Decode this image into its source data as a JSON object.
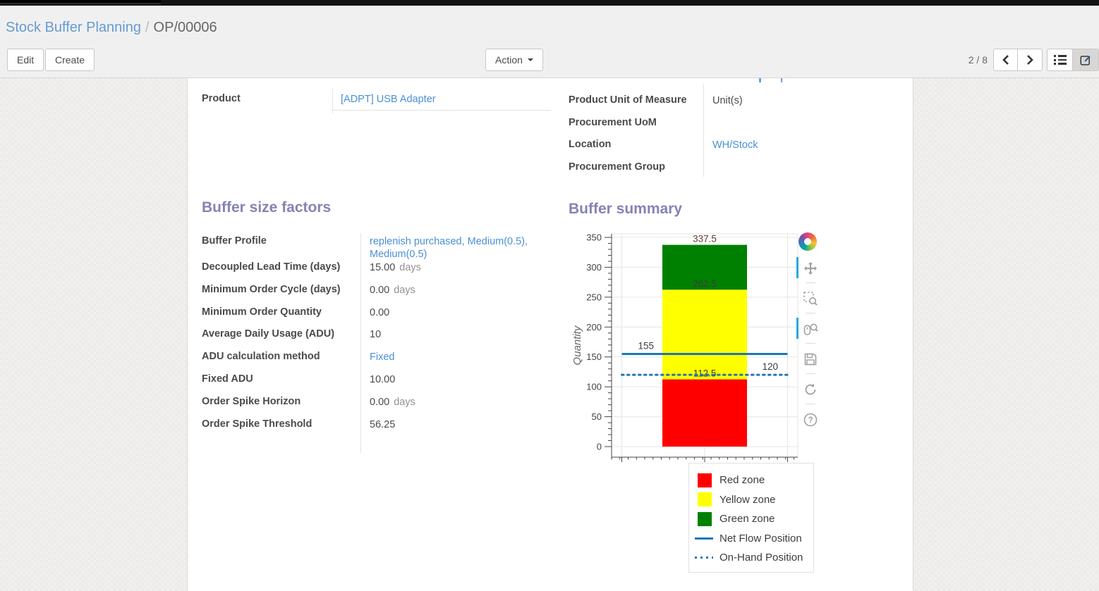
{
  "breadcrumb": {
    "parent": "Stock Buffer Planning",
    "separator": "/",
    "current": "OP/00006"
  },
  "control_panel": {
    "edit_label": "Edit",
    "create_label": "Create",
    "action_label": "Action",
    "pager": "2 / 8"
  },
  "record": {
    "info_left": [
      {
        "label": "Product",
        "value": "[ADPT] USB Adapter",
        "link": true,
        "underline": true
      }
    ],
    "info_right": [
      {
        "label": "Product Unit of Measure",
        "value": "Unit(s)",
        "link": false
      },
      {
        "label": "Procurement UoM",
        "value": "",
        "link": false
      },
      {
        "label": "Location",
        "value": "WH/Stock",
        "link": true
      },
      {
        "label": "Procurement Group",
        "value": "",
        "link": false
      }
    ]
  },
  "buffer_size_factors": {
    "title": "Buffer size factors",
    "rows": [
      {
        "label": "Buffer Profile",
        "value": "replenish purchased, Medium(0.5), Medium(0.5)",
        "link": true,
        "suffix": ""
      },
      {
        "label": "Decoupled Lead Time (days)",
        "value": "15.00",
        "suffix": "days"
      },
      {
        "label": "Minimum Order Cycle (days)",
        "value": "0.00",
        "suffix": "days"
      },
      {
        "label": "Minimum Order Quantity",
        "value": "0.00",
        "suffix": ""
      },
      {
        "label": "Average Daily Usage (ADU)",
        "value": "10",
        "suffix": ""
      },
      {
        "label": "ADU calculation method",
        "value": "Fixed",
        "link": true,
        "suffix": ""
      },
      {
        "label": "Fixed ADU",
        "value": "10.00",
        "suffix": ""
      },
      {
        "label": "Order Spike Horizon",
        "value": "0.00",
        "suffix": "days"
      },
      {
        "label": "Order Spike Threshold",
        "value": "56.25",
        "suffix": ""
      }
    ]
  },
  "buffer_summary": {
    "title": "Buffer summary"
  },
  "chart_data": {
    "type": "bar",
    "title": "",
    "xlabel": "",
    "ylabel": "Quantity",
    "ylim": [
      0,
      350
    ],
    "yticks": [
      0,
      50,
      100,
      150,
      200,
      250,
      300,
      350
    ],
    "grid": true,
    "legend_position": "below-right",
    "zones": [
      {
        "name": "Red zone",
        "from": 0,
        "to": 112.5,
        "color": "#ff0000",
        "label": "112.5"
      },
      {
        "name": "Yellow zone",
        "from": 112.5,
        "to": 262.5,
        "color": "#ffff00",
        "label": "262.5"
      },
      {
        "name": "Green zone",
        "from": 262.5,
        "to": 337.5,
        "color": "#008000",
        "label": "337.5"
      }
    ],
    "lines": [
      {
        "name": "Net Flow Position",
        "value": 155,
        "style": "solid",
        "color": "#1f77b4",
        "label": "155"
      },
      {
        "name": "On-Hand Position",
        "value": 120,
        "style": "dotted",
        "color": "#1f77b4",
        "label": "120"
      }
    ],
    "legend": [
      {
        "label": "Red zone",
        "swatch": "box",
        "color": "#ff0000"
      },
      {
        "label": "Yellow zone",
        "swatch": "box",
        "color": "#ffff00"
      },
      {
        "label": "Green zone",
        "swatch": "box",
        "color": "#008000"
      },
      {
        "label": "Net Flow Position",
        "swatch": "line",
        "color": "#1f77b4"
      },
      {
        "label": "On-Hand Position",
        "swatch": "dotted",
        "color": "#1f77b4"
      }
    ]
  },
  "chart_toolbar": {
    "tools": [
      {
        "name": "pan",
        "active": true
      },
      {
        "name": "box-zoom",
        "active": false
      },
      {
        "name": "wheel-zoom",
        "active": true
      },
      {
        "name": "save",
        "active": false
      },
      {
        "name": "reset",
        "active": false
      },
      {
        "name": "help",
        "active": false
      }
    ]
  },
  "colors": {
    "heading": "#8583b3",
    "link": "#4a90d6",
    "accent_active_tool": "#29a8e0",
    "net_flow_line": "#1f77b4"
  }
}
